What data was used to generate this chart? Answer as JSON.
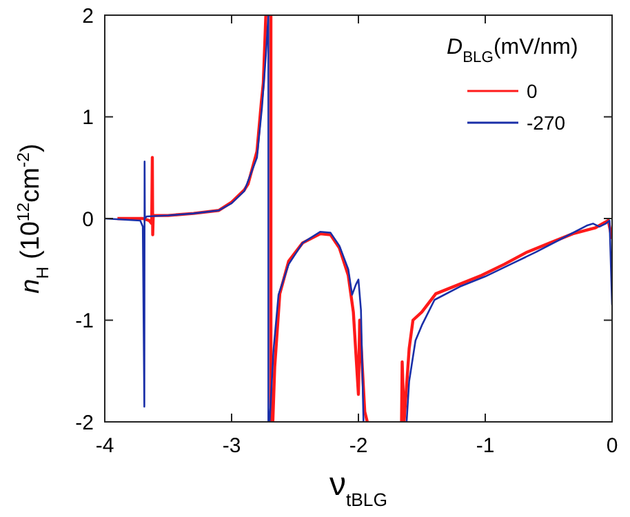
{
  "chart_data": {
    "type": "line",
    "xlabel": "ν$_{tBLG}$",
    "ylabel": "n$_{H}$ (10$^{12}$cm$^{-2}$)",
    "legend_title": "D$_{BLG}$(mV/nm)",
    "xlim": [
      -4,
      0
    ],
    "ylim": [
      -2,
      2
    ],
    "xticks": [
      -4,
      -3,
      -2,
      -1,
      0
    ],
    "yticks": [
      -2,
      -1,
      0,
      1,
      2
    ],
    "grid": false,
    "legend": "top right",
    "marker": "none",
    "line_style": "solid",
    "series": [
      {
        "name": "0",
        "color": "#ff1a1a",
        "x": [
          -3.9,
          -3.7,
          -3.65,
          -3.63,
          -3.625,
          -3.622,
          -3.618,
          -3.6,
          -3.5,
          -3.3,
          -3.1,
          -3.0,
          -2.9,
          -2.87,
          -2.8,
          -2.765,
          -2.75,
          -2.73,
          -2.69,
          -2.69,
          -2.675,
          -2.66,
          -2.62,
          -2.55,
          -2.44,
          -2.3,
          -2.22,
          -2.15,
          -2.08,
          -2.04,
          -2.0,
          -1.99,
          -1.95,
          -1.93,
          null,
          -1.66,
          -1.655,
          -1.64,
          -1.6,
          -1.57,
          -1.5,
          -1.39,
          -1.21,
          -1.03,
          -0.85,
          -0.67,
          -0.49,
          -0.31,
          -0.13,
          -0.06,
          -0.03,
          0
        ],
        "values": [
          0,
          0,
          -0.02,
          -0.05,
          0.6,
          -0.16,
          0.03,
          0.03,
          0.03,
          0.05,
          0.08,
          0.16,
          0.28,
          0.34,
          0.66,
          1.15,
          1.33,
          2,
          2,
          -2,
          -2,
          -1.46,
          -0.74,
          -0.42,
          -0.24,
          -0.15,
          -0.16,
          -0.29,
          -0.56,
          -0.92,
          -1.73,
          -1.0,
          -1.9,
          -2,
          null,
          -2,
          -1.41,
          -2,
          -1.28,
          -1.0,
          -0.92,
          -0.74,
          -0.65,
          -0.56,
          -0.45,
          -0.33,
          -0.24,
          -0.15,
          -0.09,
          -0.04,
          -0.02,
          -0.2
        ]
      },
      {
        "name": "-270",
        "color": "#1a2fa8",
        "x": [
          -4,
          -3.72,
          -3.7,
          -3.688,
          -3.686,
          -3.684,
          -3.67,
          -3.5,
          -3.3,
          -3.1,
          -3.0,
          -2.9,
          -2.8,
          -2.76,
          -2.73,
          -2.71,
          -2.71,
          -2.7,
          -2.67,
          -2.63,
          -2.55,
          -2.44,
          -2.3,
          -2.22,
          -2.15,
          -2.08,
          -2.05,
          -2.02,
          -2.0,
          -1.98,
          -1.96,
          null,
          -1.62,
          -1.6,
          -1.55,
          -1.5,
          -1.4,
          -1.2,
          -1.0,
          -0.8,
          -0.6,
          -0.4,
          -0.2,
          -0.15,
          -0.1,
          -0.05,
          -0.02,
          0
        ],
        "values": [
          0,
          -0.02,
          -0.08,
          -1.85,
          0.56,
          0.0,
          0.02,
          0.03,
          0.05,
          0.08,
          0.15,
          0.27,
          0.6,
          1.1,
          1.6,
          2,
          -2,
          -2,
          -1.3,
          -0.75,
          -0.45,
          -0.24,
          -0.13,
          -0.14,
          -0.27,
          -0.5,
          -0.75,
          -0.65,
          -0.6,
          -0.9,
          -2,
          null,
          -2,
          -1.6,
          -1.2,
          -1.05,
          -0.8,
          -0.67,
          -0.57,
          -0.45,
          -0.33,
          -0.2,
          -0.07,
          -0.05,
          -0.08,
          -0.05,
          -0.02,
          -0.85
        ]
      }
    ]
  }
}
